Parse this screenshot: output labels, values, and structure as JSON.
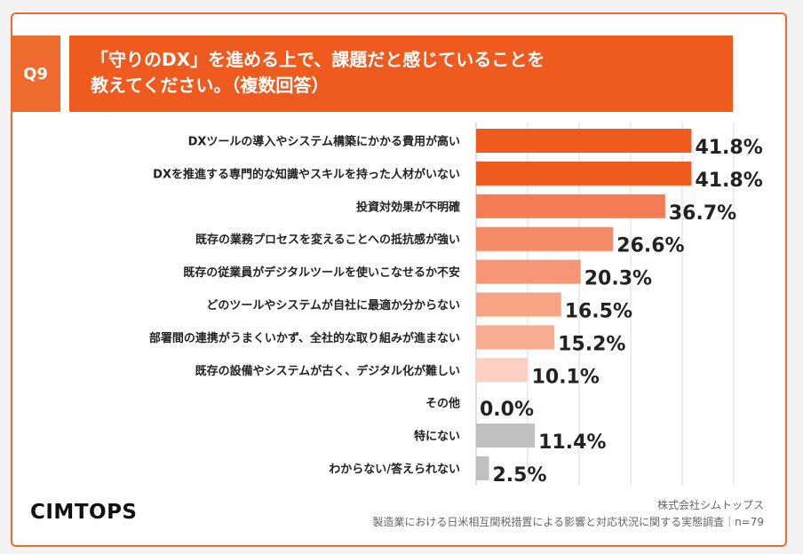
{
  "question": {
    "number": "Q9",
    "title_line1": "「守りのDX」を進める上で、課題だと感じていることを",
    "title_line2": "教えてください。（複数回答）"
  },
  "colors": {
    "brand_orange": "#ef5a1f",
    "bar_shades": [
      "#ef5a1f",
      "#ef5a1f",
      "#f37c55",
      "#f58a66",
      "#f69676",
      "#f7a385",
      "#f8ad93",
      "#fbd0c2",
      "#fbd0c2",
      "#bfbfbf",
      "#bfbfbf"
    ]
  },
  "chart_data": {
    "type": "bar",
    "orientation": "horizontal",
    "categories": [
      "DXツールの導入やシステム構築にかかる費用が高い",
      "DXを推進する専門的な知識やスキルを持った人材がいない",
      "投資対効果が不明確",
      "既存の業務プロセスを変えることへの抵抗感が強い",
      "既存の従業員がデジタルツールを使いこなせるか不安",
      "どのツールやシステムが自社に最適か分からない",
      "部署間の連携がうまくいかず、全社的な取り組みが進まない",
      "既存の設備やシステムが古く、デジタル化が難しい",
      "その他",
      "特にない",
      "わからない/答えられない"
    ],
    "values": [
      41.8,
      41.8,
      36.7,
      26.6,
      20.3,
      16.5,
      15.2,
      10.1,
      0.0,
      11.4,
      2.5
    ],
    "value_labels": [
      "41.8%",
      "41.8%",
      "36.7%",
      "26.6%",
      "20.3%",
      "16.5%",
      "15.2%",
      "10.1%",
      "0.0%",
      "11.4%",
      "2.5%"
    ],
    "xlim": [
      0,
      50
    ],
    "grid": true
  },
  "footer": {
    "logo": "CIMTOPS",
    "company": "株式会社シムトップス",
    "survey": "製造業における日米相互関税措置による影響と対応状況に関する実態調査｜n=79"
  }
}
